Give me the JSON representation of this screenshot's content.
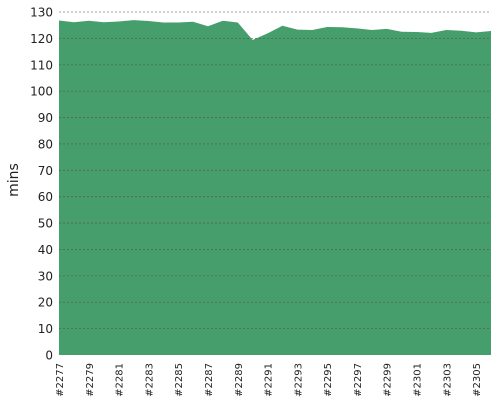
{
  "chart_data": {
    "type": "area",
    "title": "",
    "xlabel": "",
    "ylabel": "mins",
    "ylim": [
      0,
      130
    ],
    "yticks": [
      0,
      10,
      20,
      30,
      40,
      50,
      60,
      70,
      80,
      90,
      100,
      110,
      120,
      130
    ],
    "grid": true,
    "legend": "none",
    "colors": {
      "area_fill": "#459e6b",
      "grid_line": "#555555",
      "axis_text": "#222222"
    },
    "categories": [
      "#2277",
      "#2278",
      "#2279",
      "#2280",
      "#2281",
      "#2282",
      "#2283",
      "#2284",
      "#2285",
      "#2286",
      "#2287",
      "#2288",
      "#2289",
      "#2290",
      "#2291",
      "#2292",
      "#2293",
      "#2294",
      "#2295",
      "#2296",
      "#2297",
      "#2298",
      "#2299",
      "#2300",
      "#2301",
      "#2302",
      "#2303",
      "#2304",
      "#2305",
      "#2306"
    ],
    "x_tick_labels": [
      "#2277",
      "#2279",
      "#2281",
      "#2283",
      "#2285",
      "#2287",
      "#2289",
      "#2291",
      "#2293",
      "#2295",
      "#2297",
      "#2299",
      "#2301",
      "#2303",
      "#2305"
    ],
    "series": [
      {
        "values": [
          126.8,
          126.1,
          126.7,
          126.1,
          126.4,
          126.9,
          126.6,
          126.0,
          126.0,
          126.3,
          124.6,
          126.7,
          126.0,
          119.4,
          121.9,
          124.8,
          123.3,
          123.2,
          124.3,
          124.2,
          123.8,
          123.2,
          123.6,
          122.5,
          122.4,
          122.1,
          123.2,
          122.9,
          122.3,
          122.8
        ]
      }
    ]
  }
}
